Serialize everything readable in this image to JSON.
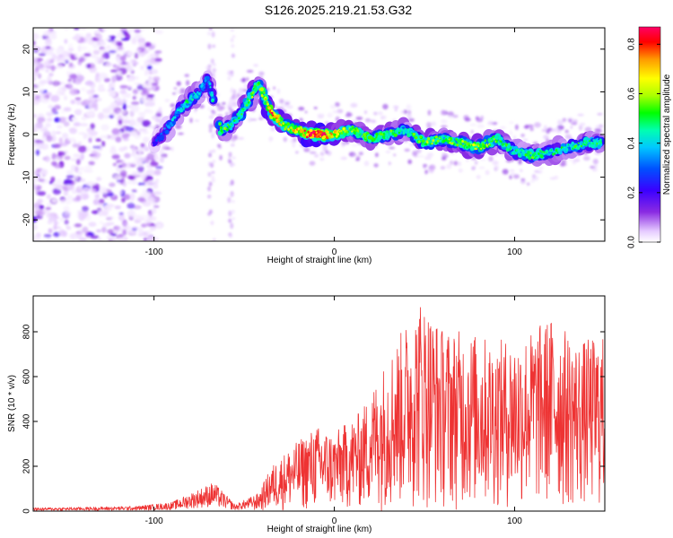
{
  "title": "S126.2025.219.21.53.G32",
  "colors": {
    "snr_line": "#ee3333",
    "spectral_ramp": [
      "#ffffff",
      "#e6ccff",
      "#8a2be2",
      "#3b00ff",
      "#0050ff",
      "#00c8ff",
      "#00ffb0",
      "#00ff00",
      "#aaff00",
      "#ffff00",
      "#ff9900",
      "#ff0000",
      "#ff0066"
    ]
  },
  "chart_data": [
    {
      "type": "heatmap",
      "xlabel": "Height of straight line (km)",
      "ylabel": "Frequency (Hz)",
      "xlim": [
        -167,
        150
      ],
      "ylim": [
        -25,
        25
      ],
      "x_ticks": [
        {
          "value": -100,
          "label": "-100"
        },
        {
          "value": 0,
          "label": "0"
        },
        {
          "value": 100,
          "label": "100"
        }
      ],
      "y_ticks": [
        {
          "value": 20,
          "label": "20"
        },
        {
          "value": 10,
          "label": "10"
        },
        {
          "value": 0,
          "label": "0"
        },
        {
          "value": -10,
          "label": "-10"
        },
        {
          "value": -20,
          "label": "-20"
        }
      ],
      "colorbar": {
        "label": "Normalized spectral amplitude",
        "range": [
          0.0,
          0.87
        ],
        "ticks": [
          {
            "value": 0.0,
            "label": "0.0"
          },
          {
            "value": 0.2,
            "label": "0.2"
          },
          {
            "value": 0.4,
            "label": "0.4"
          },
          {
            "value": 0.6,
            "label": "0.6"
          },
          {
            "value": 0.8,
            "label": "0.8"
          }
        ]
      },
      "ridge": [
        {
          "x": -100,
          "y": -2,
          "amp": 0.25
        },
        {
          "x": -95,
          "y": 0,
          "amp": 0.3
        },
        {
          "x": -90,
          "y": 3,
          "amp": 0.35
        },
        {
          "x": -85,
          "y": 6,
          "amp": 0.4
        },
        {
          "x": -80,
          "y": 8,
          "amp": 0.45
        },
        {
          "x": -75,
          "y": 10,
          "amp": 0.4
        },
        {
          "x": -70,
          "y": 13,
          "amp": 0.35
        },
        {
          "x": -63,
          "y": 1,
          "amp": 0.55
        },
        {
          "x": -57,
          "y": 2,
          "amp": 0.45
        },
        {
          "x": -52,
          "y": 5,
          "amp": 0.5
        },
        {
          "x": -46,
          "y": 9,
          "amp": 0.55
        },
        {
          "x": -42,
          "y": 12,
          "amp": 0.5
        },
        {
          "x": -35,
          "y": 5,
          "amp": 0.78
        },
        {
          "x": -27,
          "y": 2,
          "amp": 0.6
        },
        {
          "x": -20,
          "y": 1,
          "amp": 0.65
        },
        {
          "x": -15,
          "y": 0,
          "amp": 0.82
        },
        {
          "x": -8,
          "y": 0,
          "amp": 0.87
        },
        {
          "x": 0,
          "y": 0,
          "amp": 0.7
        },
        {
          "x": 10,
          "y": 1,
          "amp": 0.55
        },
        {
          "x": 20,
          "y": -1,
          "amp": 0.55
        },
        {
          "x": 30,
          "y": 0,
          "amp": 0.5
        },
        {
          "x": 40,
          "y": 1,
          "amp": 0.45
        },
        {
          "x": 50,
          "y": -2,
          "amp": 0.55
        },
        {
          "x": 60,
          "y": -1,
          "amp": 0.5
        },
        {
          "x": 70,
          "y": -2,
          "amp": 0.55
        },
        {
          "x": 80,
          "y": -3,
          "amp": 0.6
        },
        {
          "x": 90,
          "y": -1,
          "amp": 0.5
        },
        {
          "x": 100,
          "y": -4,
          "amp": 0.45
        },
        {
          "x": 110,
          "y": -5,
          "amp": 0.5
        },
        {
          "x": 120,
          "y": -4,
          "amp": 0.45
        },
        {
          "x": 130,
          "y": -3,
          "amp": 0.45
        },
        {
          "x": 140,
          "y": -2,
          "amp": 0.5
        },
        {
          "x": 148,
          "y": -2,
          "amp": 0.45
        }
      ]
    },
    {
      "type": "line",
      "xlabel": "Height of straight line (km)",
      "ylabel": "SNR (10 * v/v)",
      "xlim": [
        -167,
        150
      ],
      "ylim": [
        0,
        960
      ],
      "x_ticks": [
        {
          "value": -100,
          "label": "-100"
        },
        {
          "value": 0,
          "label": "0"
        },
        {
          "value": 100,
          "label": "100"
        }
      ],
      "y_ticks": [
        {
          "value": 0,
          "label": "0"
        },
        {
          "value": 200,
          "label": "200"
        },
        {
          "value": 400,
          "label": "400"
        },
        {
          "value": 600,
          "label": "600"
        },
        {
          "value": 800,
          "label": "800"
        }
      ],
      "envelope": [
        {
          "x": -167,
          "y": 15
        },
        {
          "x": -140,
          "y": 18
        },
        {
          "x": -110,
          "y": 22
        },
        {
          "x": -90,
          "y": 40
        },
        {
          "x": -80,
          "y": 80
        },
        {
          "x": -67,
          "y": 130
        },
        {
          "x": -55,
          "y": 30
        },
        {
          "x": -42,
          "y": 80
        },
        {
          "x": -35,
          "y": 200
        },
        {
          "x": -25,
          "y": 280
        },
        {
          "x": -10,
          "y": 380
        },
        {
          "x": 0,
          "y": 350
        },
        {
          "x": 15,
          "y": 450
        },
        {
          "x": 30,
          "y": 700
        },
        {
          "x": 48,
          "y": 960
        },
        {
          "x": 60,
          "y": 820
        },
        {
          "x": 75,
          "y": 800
        },
        {
          "x": 90,
          "y": 760
        },
        {
          "x": 108,
          "y": 800
        },
        {
          "x": 120,
          "y": 870
        },
        {
          "x": 135,
          "y": 760
        },
        {
          "x": 148,
          "y": 780
        }
      ]
    }
  ]
}
